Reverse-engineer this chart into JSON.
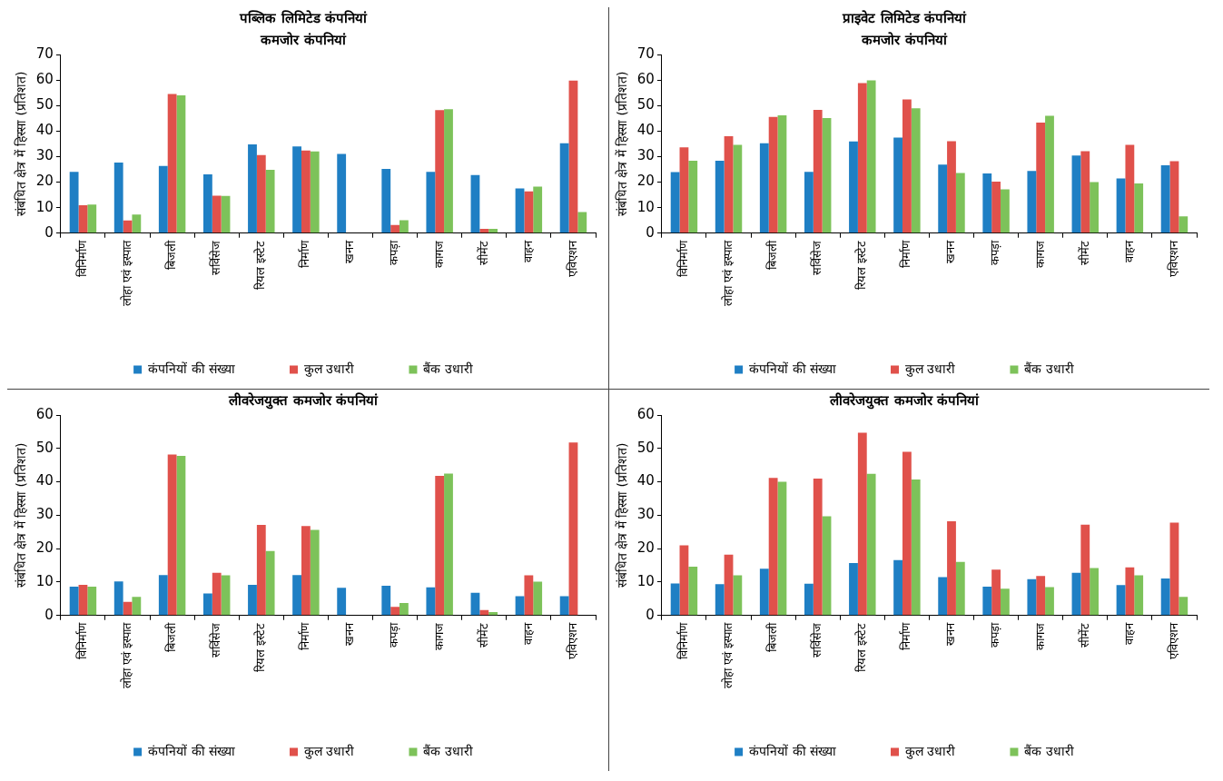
{
  "chart_data": [
    {
      "type": "bar",
      "title": "पब्लिक लिमिटेड कंपनियां",
      "subtitle": "कमजोर कंपनियां",
      "ylabel": "संबंधित क्षेत्र में हिस्सा (प्रतिशत)",
      "categories": [
        "विनिर्माण",
        "लोहा एवं इस्पात",
        "बिजली",
        "सर्विसेज",
        "रियल इस्टेट",
        "निर्माण",
        "खनन",
        "कपड़ा",
        "कागज",
        "सीमेंट",
        "वाहन",
        "एविएशन"
      ],
      "ylim": [
        0,
        70
      ],
      "yticks": [
        0,
        10,
        20,
        30,
        40,
        50,
        60,
        70
      ],
      "grid": false,
      "legend": "bottom",
      "series": [
        {
          "name": "कंपनियों की संख्या",
          "color": "#1f7fc4",
          "values": [
            24,
            27.7,
            26.3,
            23,
            34.8,
            34,
            31,
            25.2,
            24,
            22.8,
            17.5,
            35.2
          ]
        },
        {
          "name": "कुल उधारी",
          "color": "#e0514b",
          "values": [
            10.9,
            5,
            54.5,
            14.7,
            30.6,
            32.4,
            null,
            3.2,
            48.2,
            1.7,
            16.4,
            59.8
          ]
        },
        {
          "name": "बैंक उधारी",
          "color": "#7dc25a",
          "values": [
            11.2,
            7.3,
            54,
            14.6,
            24.8,
            32,
            null,
            5.1,
            48.6,
            1.7,
            18.2,
            8.3
          ]
        }
      ]
    },
    {
      "type": "bar",
      "title": "प्राइवेट लिमिटेड कंपनियां",
      "subtitle": "कमजोर कंपनियां",
      "ylabel": "संबंधित क्षेत्र में हिस्सा (प्रतिशत)",
      "categories": [
        "विनिर्माण",
        "लोहा एवं इस्पात",
        "बिजली",
        "सर्विसेज",
        "रियल इस्टेट",
        "निर्माण",
        "खनन",
        "कपड़ा",
        "कागज",
        "सीमेंट",
        "वाहन",
        "एविएशन"
      ],
      "ylim": [
        0,
        70
      ],
      "yticks": [
        0,
        10,
        20,
        30,
        40,
        50,
        60,
        70
      ],
      "grid": false,
      "legend": "bottom",
      "series": [
        {
          "name": "कंपनियों की संख्या",
          "color": "#1f7fc4",
          "values": [
            23.9,
            28.4,
            35.2,
            24,
            35.9,
            37.4,
            26.9,
            23.4,
            24.4,
            30.4,
            21.4,
            26.6
          ]
        },
        {
          "name": "कुल उधारी",
          "color": "#e0514b",
          "values": [
            33.6,
            38,
            45.5,
            48.3,
            58.8,
            52.4,
            36,
            20.2,
            43.3,
            32.1,
            34.6,
            28.2
          ]
        },
        {
          "name": "बैंक उधारी",
          "color": "#7dc25a",
          "values": [
            28.4,
            34.6,
            46.2,
            45.1,
            59.9,
            48.9,
            23.6,
            17.2,
            46,
            20,
            19.5,
            6.6
          ]
        }
      ]
    },
    {
      "type": "bar",
      "title": "लीवरेजयुक्त कमजोर कंपनियां",
      "ylabel": "संबंधित क्षेत्र में हिस्सा (प्रतिशत)",
      "categories": [
        "विनिर्माण",
        "लोहा एवं इस्पात",
        "बिजली",
        "सर्विसेज",
        "रियल इस्टेट",
        "निर्माण",
        "खनन",
        "कपड़ा",
        "कागज",
        "सीमेंट",
        "वाहन",
        "एविएशन"
      ],
      "ylim": [
        0,
        60
      ],
      "yticks": [
        0,
        10,
        20,
        30,
        40,
        50,
        60
      ],
      "grid": false,
      "legend": "bottom",
      "series": [
        {
          "name": "कंपनियों की संख्या",
          "color": "#1f7fc4",
          "values": [
            8.6,
            10.2,
            12.1,
            6.6,
            9.2,
            12.1,
            8.3,
            8.9,
            8.4,
            6.8,
            5.8,
            5.8
          ]
        },
        {
          "name": "कुल उधारी",
          "color": "#e0514b",
          "values": [
            9.2,
            4.1,
            48.2,
            12.8,
            27.1,
            26.8,
            null,
            2.6,
            41.8,
            1.6,
            12,
            51.8
          ]
        },
        {
          "name": "बैंक उधारी",
          "color": "#7dc25a",
          "values": [
            8.6,
            5.6,
            47.8,
            12,
            19.3,
            25.6,
            null,
            3.7,
            42.5,
            1,
            10.1,
            0
          ]
        }
      ]
    },
    {
      "type": "bar",
      "title": "लीवरेजयुक्त कमजोर कंपनियां",
      "ylabel": "संबंधित क्षेत्र में हिस्सा (प्रतिशत)",
      "categories": [
        "विनिर्माण",
        "लोहा एवं इस्पात",
        "बिजली",
        "सर्विसेज",
        "रियल इस्टेट",
        "निर्माण",
        "खनन",
        "कपड़ा",
        "कागज",
        "सीमेंट",
        "वाहन",
        "एविएशन"
      ],
      "ylim": [
        0,
        60
      ],
      "yticks": [
        0,
        10,
        20,
        30,
        40,
        50,
        60
      ],
      "grid": false,
      "legend": "bottom",
      "series": [
        {
          "name": "कंपनियों की संख्या",
          "color": "#1f7fc4",
          "values": [
            9.6,
            9.4,
            14,
            9.5,
            15.7,
            16.6,
            11.5,
            8.6,
            10.9,
            12.8,
            9.1,
            11.1
          ]
        },
        {
          "name": "कुल उधारी",
          "color": "#e0514b",
          "values": [
            21,
            18.2,
            41.2,
            41,
            54.7,
            49,
            28.2,
            13.7,
            11.8,
            27.2,
            14.4,
            27.8
          ]
        },
        {
          "name": "बैंक उधारी",
          "color": "#7dc25a",
          "values": [
            14.6,
            12,
            40,
            29.7,
            42.4,
            40.7,
            16,
            8,
            8.5,
            14.2,
            12,
            5.6
          ]
        }
      ]
    }
  ]
}
